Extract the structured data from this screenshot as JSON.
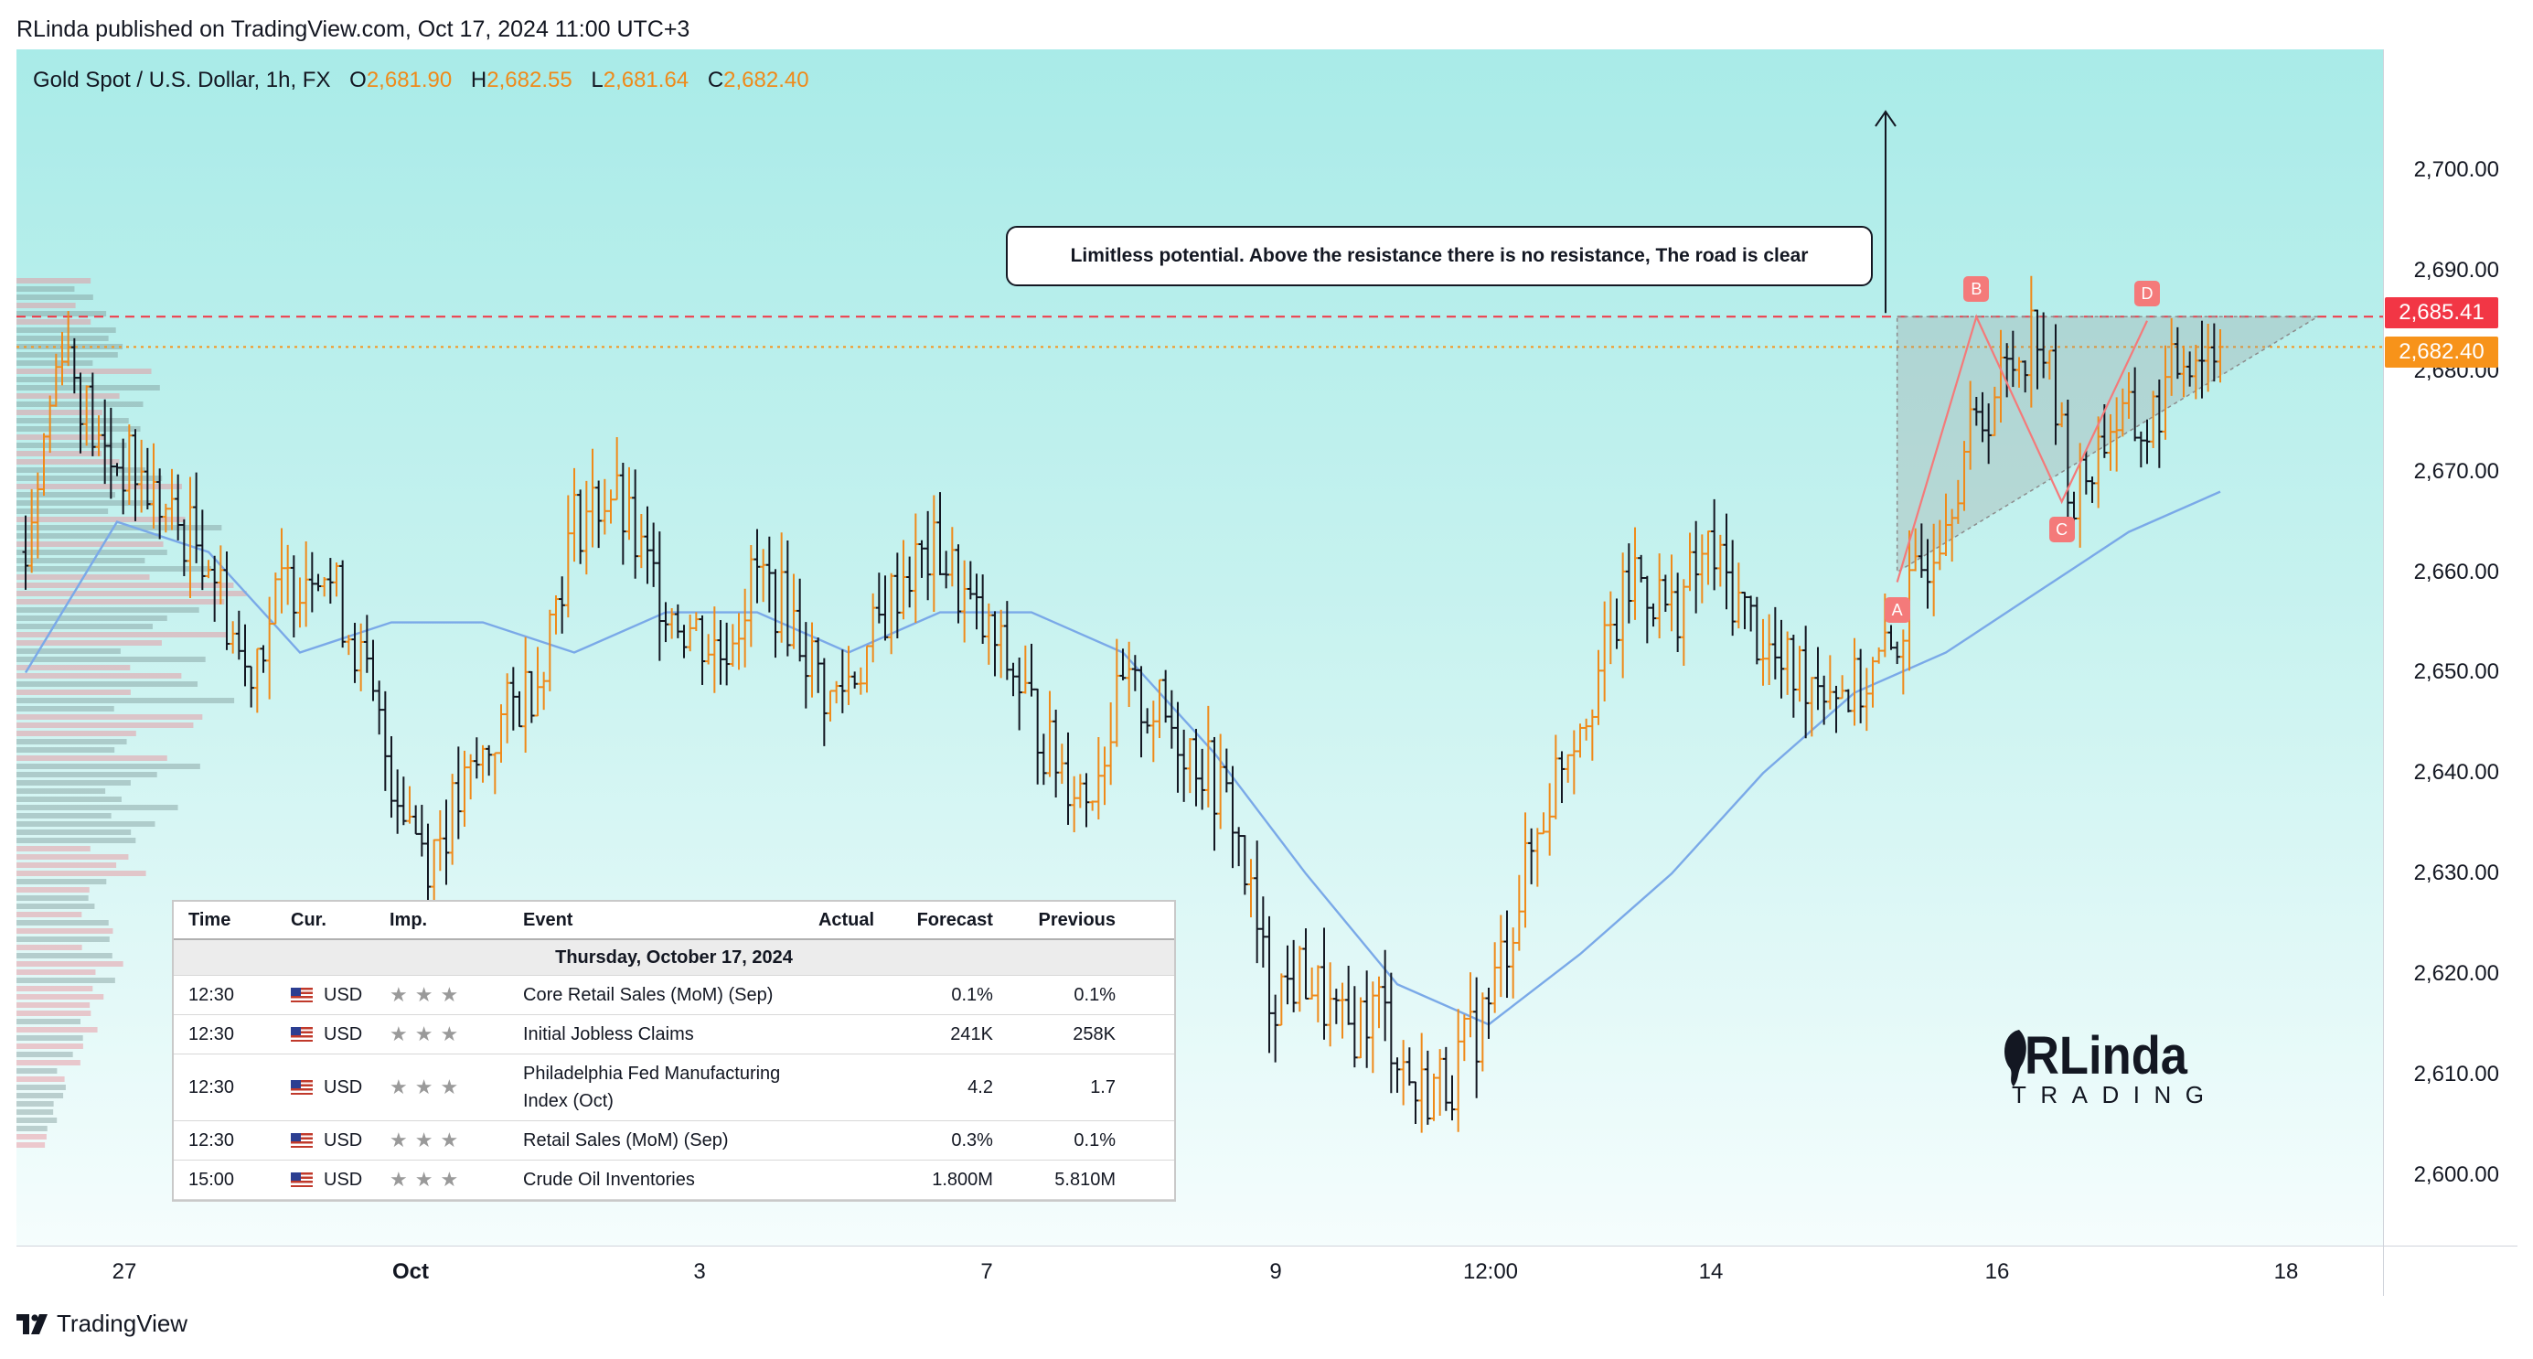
{
  "publisher": "RLinda published on TradingView.com, Oct 17, 2024 11:00 UTC+3",
  "legend": {
    "symbol": "Gold Spot / U.S. Dollar, 1h, FX",
    "open_key": "O",
    "open": "2,681.90",
    "high_key": "H",
    "high": "2,682.55",
    "low_key": "L",
    "low": "2,681.64",
    "close_key": "C",
    "close": "2,682.40"
  },
  "annotation": "Limitless potential. Above the resistance there is no resistance, The road is clear",
  "pattern_points": [
    "A",
    "B",
    "C",
    "D"
  ],
  "price_tags": {
    "resistance": "2,685.41",
    "last": "2,682.40"
  },
  "colors": {
    "resistance": "#f23645",
    "last": "#f7931a",
    "up": "#ef8a1a",
    "down": "#131722",
    "ma": "#7aa9e8"
  },
  "logo": {
    "top": "RLinda",
    "bottom": "TRADING"
  },
  "brand": "TradingView",
  "calendar": {
    "headers": [
      "Time",
      "Cur.",
      "Imp.",
      "Event",
      "Actual",
      "Forecast",
      "Previous"
    ],
    "date": "Thursday, October 17, 2024",
    "rows": [
      {
        "time": "12:30",
        "cur": "USD",
        "imp": "★★★",
        "event": "Core Retail Sales (MoM) (Sep)",
        "actual": "",
        "forecast": "0.1%",
        "previous": "0.1%"
      },
      {
        "time": "12:30",
        "cur": "USD",
        "imp": "★★★",
        "event": "Initial Jobless Claims",
        "actual": "",
        "forecast": "241K",
        "previous": "258K"
      },
      {
        "time": "12:30",
        "cur": "USD",
        "imp": "★★★",
        "event": "Philadelphia Fed Manufacturing Index (Oct)",
        "actual": "",
        "forecast": "4.2",
        "previous": "1.7"
      },
      {
        "time": "12:30",
        "cur": "USD",
        "imp": "★★★",
        "event": "Retail Sales (MoM) (Sep)",
        "actual": "",
        "forecast": "0.3%",
        "previous": "0.1%"
      },
      {
        "time": "15:00",
        "cur": "USD",
        "imp": "★★★",
        "event": "Crude Oil Inventories",
        "actual": "",
        "forecast": "1.800M",
        "previous": "5.810M"
      }
    ]
  },
  "chart_data": {
    "type": "ohlc",
    "title": "Gold Spot / U.S. Dollar, 1h, FX",
    "ylim": [
      2593,
      2712
    ],
    "yticks": [
      "2,600.00",
      "2,610.00",
      "2,620.00",
      "2,630.00",
      "2,640.00",
      "2,650.00",
      "2,660.00",
      "2,670.00",
      "2,680.00",
      "2,690.00",
      "2,700.00"
    ],
    "xticks": [
      "27",
      "Oct",
      "3",
      "7",
      "9",
      "12:00",
      "14",
      "16",
      "18"
    ],
    "resistance": 2685.41,
    "last": 2682.4,
    "close_path": [
      [
        0,
        2662
      ],
      [
        6,
        2684
      ],
      [
        12,
        2672
      ],
      [
        18,
        2670
      ],
      [
        24,
        2665
      ],
      [
        30,
        2662
      ],
      [
        36,
        2650
      ],
      [
        42,
        2658
      ],
      [
        48,
        2662
      ],
      [
        54,
        2653
      ],
      [
        60,
        2640
      ],
      [
        66,
        2632
      ],
      [
        72,
        2638
      ],
      [
        78,
        2645
      ],
      [
        84,
        2650
      ],
      [
        90,
        2665
      ],
      [
        96,
        2668
      ],
      [
        102,
        2660
      ],
      [
        108,
        2655
      ],
      [
        114,
        2652
      ],
      [
        120,
        2660
      ],
      [
        126,
        2655
      ],
      [
        132,
        2647
      ],
      [
        138,
        2652
      ],
      [
        144,
        2660
      ],
      [
        150,
        2662
      ],
      [
        156,
        2655
      ],
      [
        162,
        2650
      ],
      [
        168,
        2642
      ],
      [
        174,
        2638
      ],
      [
        180,
        2648
      ],
      [
        186,
        2646
      ],
      [
        192,
        2642
      ],
      [
        198,
        2636
      ],
      [
        204,
        2618
      ],
      [
        210,
        2620
      ],
      [
        216,
        2614
      ],
      [
        222,
        2617
      ],
      [
        228,
        2608
      ],
      [
        234,
        2610
      ],
      [
        240,
        2617
      ],
      [
        246,
        2630
      ],
      [
        252,
        2642
      ],
      [
        258,
        2650
      ],
      [
        264,
        2660
      ],
      [
        270,
        2656
      ],
      [
        276,
        2662
      ],
      [
        282,
        2656
      ],
      [
        288,
        2650
      ],
      [
        294,
        2650
      ],
      [
        300,
        2648
      ],
      [
        306,
        2652
      ],
      [
        312,
        2662
      ],
      [
        318,
        2672
      ],
      [
        324,
        2679
      ],
      [
        330,
        2685
      ],
      [
        336,
        2667
      ],
      [
        342,
        2675
      ],
      [
        348,
        2674
      ],
      [
        354,
        2682
      ],
      [
        360,
        2682.4
      ]
    ],
    "moving_average": [
      [
        0,
        2650
      ],
      [
        15,
        2665
      ],
      [
        30,
        2662
      ],
      [
        45,
        2652
      ],
      [
        60,
        2655
      ],
      [
        75,
        2655
      ],
      [
        90,
        2652
      ],
      [
        105,
        2656
      ],
      [
        120,
        2656
      ],
      [
        135,
        2652
      ],
      [
        150,
        2656
      ],
      [
        165,
        2656
      ],
      [
        180,
        2652
      ],
      [
        195,
        2642
      ],
      [
        210,
        2630
      ],
      [
        225,
        2619
      ],
      [
        240,
        2615
      ],
      [
        255,
        2622
      ],
      [
        270,
        2630
      ],
      [
        285,
        2640
      ],
      [
        300,
        2648
      ],
      [
        315,
        2652
      ],
      [
        330,
        2658
      ],
      [
        345,
        2664
      ],
      [
        360,
        2668
      ]
    ],
    "triangle": {
      "x_start": 307,
      "x_apex": 353,
      "top": 2685.41,
      "bottom_start": 2660
    },
    "pattern": [
      {
        "label": "A",
        "x": 307,
        "y": 2659
      },
      {
        "label": "B",
        "x": 320,
        "y": 2685.4
      },
      {
        "label": "C",
        "x": 334,
        "y": 2667
      },
      {
        "label": "D",
        "x": 348,
        "y": 2685
      }
    ]
  }
}
